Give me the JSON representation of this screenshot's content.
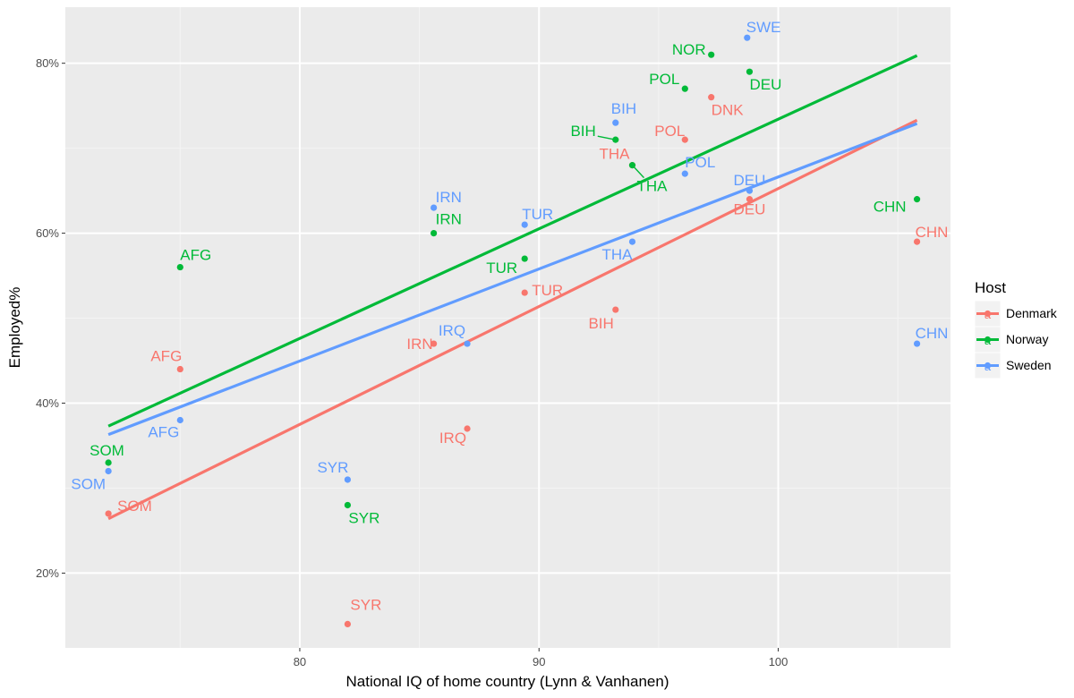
{
  "chart_data": {
    "type": "scatter",
    "xlabel": "National IQ of home country (Lynn & Vanhanen)",
    "ylabel": "Employed%",
    "xlim": [
      70.2,
      107.2
    ],
    "ylim": [
      11.2,
      86.6
    ],
    "x_ticks": [
      80,
      90,
      100
    ],
    "y_ticks": [
      20,
      40,
      60,
      80
    ],
    "y_tick_labels": [
      "20%",
      "40%",
      "60%",
      "80%"
    ],
    "grid": true,
    "legend": {
      "title": "Host",
      "placement": "right",
      "key_glyph": "a",
      "entries": [
        "Denmark",
        "Norway",
        "Sweden"
      ]
    },
    "series": [
      {
        "name": "Denmark",
        "color": "#F8766D",
        "points": [
          {
            "label": "SOM",
            "x": 72,
            "y": 27
          },
          {
            "label": "AFG",
            "x": 75,
            "y": 44
          },
          {
            "label": "SYR",
            "x": 82,
            "y": 14
          },
          {
            "label": "IRN",
            "x": 85.6,
            "y": 47
          },
          {
            "label": "IRQ",
            "x": 87,
            "y": 37
          },
          {
            "label": "TUR",
            "x": 89.4,
            "y": 53
          },
          {
            "label": "BIH",
            "x": 93.2,
            "y": 51
          },
          {
            "label": "THA",
            "x": 93.9,
            "y": 68
          },
          {
            "label": "POL",
            "x": 96.1,
            "y": 71
          },
          {
            "label": "DNK",
            "x": 97.2,
            "y": 76
          },
          {
            "label": "DEU",
            "x": 98.8,
            "y": 64
          },
          {
            "label": "CHN",
            "x": 105.8,
            "y": 59
          }
        ],
        "trend": [
          {
            "x": 72,
            "y": 26.4
          },
          {
            "x": 105.8,
            "y": 73.3
          }
        ]
      },
      {
        "name": "Norway",
        "color": "#00BA38",
        "points": [
          {
            "label": "SOM",
            "x": 72,
            "y": 33
          },
          {
            "label": "AFG",
            "x": 75,
            "y": 56
          },
          {
            "label": "SYR",
            "x": 82,
            "y": 28
          },
          {
            "label": "IRN",
            "x": 85.6,
            "y": 60
          },
          {
            "label": "TUR",
            "x": 89.4,
            "y": 57
          },
          {
            "label": "BIH",
            "x": 93.2,
            "y": 71
          },
          {
            "label": "THA",
            "x": 93.9,
            "y": 68
          },
          {
            "label": "POL",
            "x": 96.1,
            "y": 77
          },
          {
            "label": "NOR",
            "x": 97.2,
            "y": 81
          },
          {
            "label": "DEU",
            "x": 98.8,
            "y": 79
          },
          {
            "label": "CHN",
            "x": 105.8,
            "y": 64
          }
        ],
        "trend": [
          {
            "x": 72,
            "y": 37.3
          },
          {
            "x": 105.8,
            "y": 80.9
          }
        ]
      },
      {
        "name": "Sweden",
        "color": "#619CFF",
        "points": [
          {
            "label": "SOM",
            "x": 72,
            "y": 32
          },
          {
            "label": "AFG",
            "x": 75,
            "y": 38
          },
          {
            "label": "SYR",
            "x": 82,
            "y": 31
          },
          {
            "label": "IRN",
            "x": 85.6,
            "y": 63
          },
          {
            "label": "IRQ",
            "x": 87,
            "y": 47
          },
          {
            "label": "TUR",
            "x": 89.4,
            "y": 61
          },
          {
            "label": "BIH",
            "x": 93.2,
            "y": 73
          },
          {
            "label": "THA",
            "x": 93.9,
            "y": 59
          },
          {
            "label": "POL",
            "x": 96.1,
            "y": 67
          },
          {
            "label": "SWE",
            "x": 98.7,
            "y": 83
          },
          {
            "label": "DEU",
            "x": 98.8,
            "y": 65
          },
          {
            "label": "CHN",
            "x": 105.8,
            "y": 47
          }
        ],
        "trend": [
          {
            "x": 72,
            "y": 36.3
          },
          {
            "x": 105.8,
            "y": 72.9
          }
        ]
      }
    ]
  }
}
